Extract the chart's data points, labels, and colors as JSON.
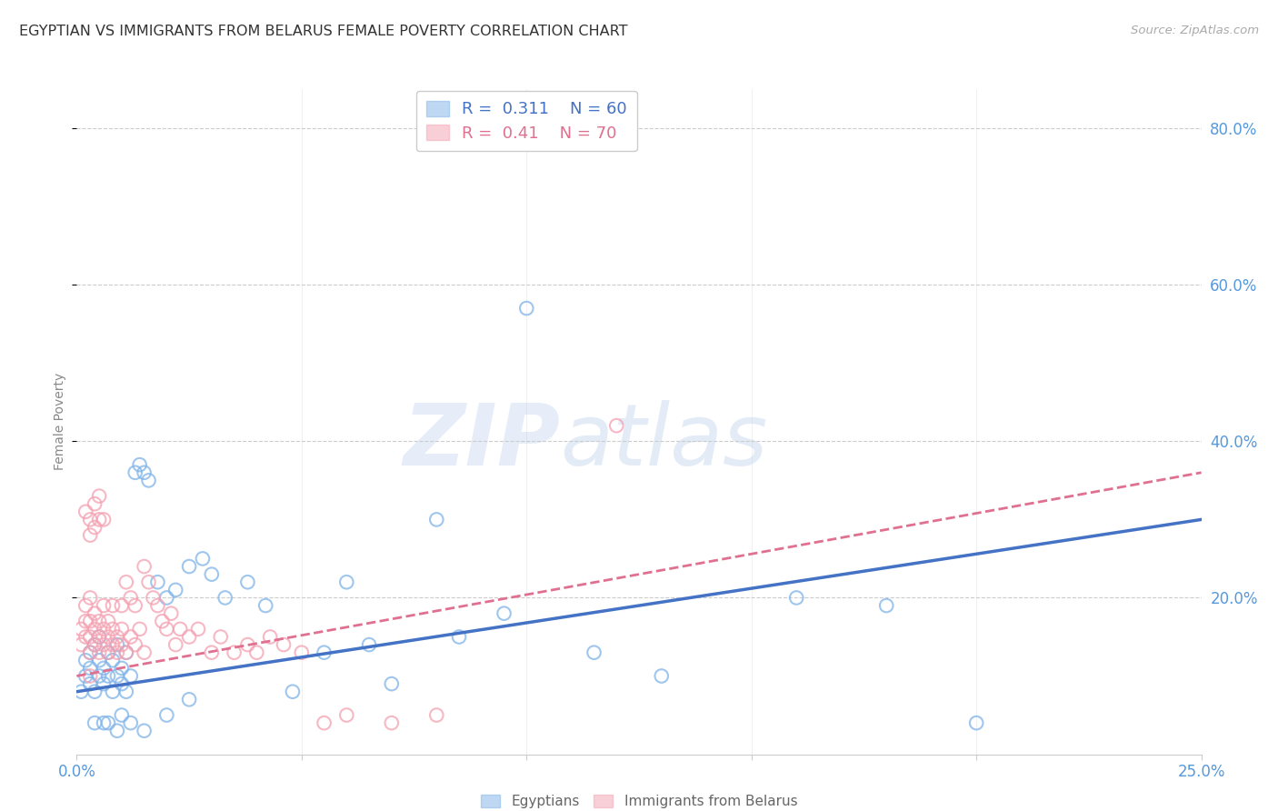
{
  "title": "EGYPTIAN VS IMMIGRANTS FROM BELARUS FEMALE POVERTY CORRELATION CHART",
  "source": "Source: ZipAtlas.com",
  "ylabel": "Female Poverty",
  "xlim": [
    0.0,
    0.25
  ],
  "ylim": [
    0.0,
    0.85
  ],
  "xticks": [
    0.0,
    0.05,
    0.1,
    0.15,
    0.2,
    0.25
  ],
  "xticklabels": [
    "0.0%",
    "",
    "",
    "",
    "",
    "25.0%"
  ],
  "ytick_positions": [
    0.2,
    0.4,
    0.6,
    0.8
  ],
  "ytick_labels": [
    "20.0%",
    "40.0%",
    "60.0%",
    "80.0%"
  ],
  "blue_R": 0.311,
  "blue_N": 60,
  "pink_R": 0.41,
  "pink_N": 70,
  "legend_label_1": "Egyptians",
  "legend_label_2": "Immigrants from Belarus",
  "watermark_zip": "ZIP",
  "watermark_atlas": "atlas",
  "background_color": "#ffffff",
  "grid_color": "#cccccc",
  "blue_color": "#7fb3e8",
  "pink_color": "#f4a0b0",
  "blue_line_color": "#4472c4",
  "pink_line_color": "#e07090",
  "axis_label_color": "#5599dd",
  "title_color": "#333333",
  "blue_scatter_x": [
    0.001,
    0.002,
    0.002,
    0.003,
    0.003,
    0.003,
    0.004,
    0.004,
    0.005,
    0.005,
    0.005,
    0.006,
    0.006,
    0.007,
    0.007,
    0.008,
    0.008,
    0.009,
    0.009,
    0.01,
    0.01,
    0.011,
    0.011,
    0.012,
    0.013,
    0.014,
    0.015,
    0.016,
    0.018,
    0.02,
    0.022,
    0.025,
    0.028,
    0.03,
    0.033,
    0.038,
    0.042,
    0.048,
    0.055,
    0.06,
    0.065,
    0.07,
    0.08,
    0.085,
    0.095,
    0.1,
    0.115,
    0.13,
    0.16,
    0.18,
    0.004,
    0.006,
    0.007,
    0.009,
    0.01,
    0.012,
    0.015,
    0.02,
    0.025,
    0.2
  ],
  "blue_scatter_y": [
    0.08,
    0.1,
    0.12,
    0.09,
    0.11,
    0.13,
    0.08,
    0.14,
    0.1,
    0.12,
    0.15,
    0.09,
    0.11,
    0.1,
    0.13,
    0.08,
    0.12,
    0.1,
    0.14,
    0.09,
    0.11,
    0.08,
    0.13,
    0.1,
    0.36,
    0.37,
    0.36,
    0.35,
    0.22,
    0.2,
    0.21,
    0.24,
    0.25,
    0.23,
    0.2,
    0.22,
    0.19,
    0.08,
    0.13,
    0.22,
    0.14,
    0.09,
    0.3,
    0.15,
    0.18,
    0.57,
    0.13,
    0.1,
    0.2,
    0.19,
    0.04,
    0.04,
    0.04,
    0.03,
    0.05,
    0.04,
    0.03,
    0.05,
    0.07,
    0.04
  ],
  "pink_scatter_x": [
    0.001,
    0.001,
    0.002,
    0.002,
    0.002,
    0.003,
    0.003,
    0.003,
    0.003,
    0.004,
    0.004,
    0.004,
    0.005,
    0.005,
    0.005,
    0.006,
    0.006,
    0.006,
    0.007,
    0.007,
    0.007,
    0.008,
    0.008,
    0.008,
    0.009,
    0.009,
    0.01,
    0.01,
    0.01,
    0.011,
    0.011,
    0.012,
    0.012,
    0.013,
    0.013,
    0.014,
    0.015,
    0.015,
    0.016,
    0.017,
    0.018,
    0.019,
    0.02,
    0.021,
    0.022,
    0.023,
    0.025,
    0.027,
    0.03,
    0.032,
    0.035,
    0.038,
    0.04,
    0.043,
    0.046,
    0.05,
    0.055,
    0.06,
    0.07,
    0.08,
    0.002,
    0.003,
    0.004,
    0.005,
    0.003,
    0.004,
    0.005,
    0.006,
    0.12,
    0.003
  ],
  "pink_scatter_y": [
    0.14,
    0.16,
    0.15,
    0.17,
    0.19,
    0.13,
    0.15,
    0.17,
    0.2,
    0.14,
    0.16,
    0.18,
    0.13,
    0.15,
    0.17,
    0.14,
    0.16,
    0.19,
    0.13,
    0.15,
    0.17,
    0.14,
    0.16,
    0.19,
    0.13,
    0.15,
    0.14,
    0.16,
    0.19,
    0.13,
    0.22,
    0.15,
    0.2,
    0.14,
    0.19,
    0.16,
    0.13,
    0.24,
    0.22,
    0.2,
    0.19,
    0.17,
    0.16,
    0.18,
    0.14,
    0.16,
    0.15,
    0.16,
    0.13,
    0.15,
    0.13,
    0.14,
    0.13,
    0.15,
    0.14,
    0.13,
    0.04,
    0.05,
    0.04,
    0.05,
    0.31,
    0.3,
    0.32,
    0.33,
    0.28,
    0.29,
    0.3,
    0.3,
    0.42,
    0.1
  ],
  "blue_trend_x": [
    0.0,
    0.25
  ],
  "blue_trend_y": [
    0.08,
    0.3
  ],
  "pink_trend_x": [
    0.0,
    0.25
  ],
  "pink_trend_y": [
    0.1,
    0.36
  ]
}
